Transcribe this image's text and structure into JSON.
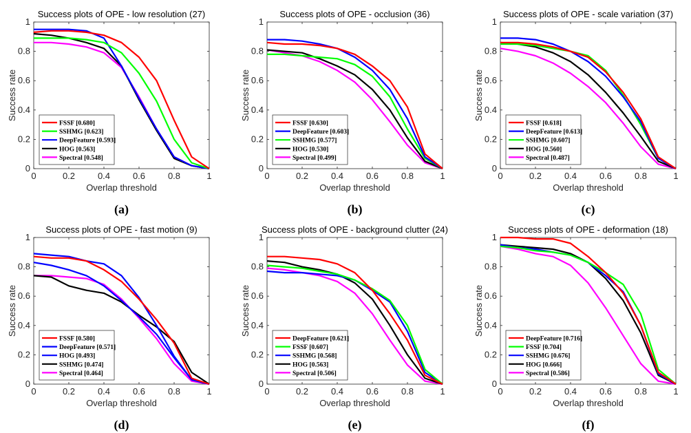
{
  "colors": {
    "FSSF": "#ff0000",
    "SSHMG": "#00ff00",
    "DeepFeature": "#0000ff",
    "HOG": "#000000",
    "Spectral": "#ff00ff"
  },
  "chart_data": [
    {
      "type": "line",
      "caption": "(a)",
      "title": "Success plots of OPE - low resolution (27)",
      "xlabel": "Overlap threshold",
      "ylabel": "Success rate",
      "xlim": [
        0,
        1
      ],
      "ylim": [
        0,
        1
      ],
      "xticks": [
        "0",
        "0.2",
        "0.4",
        "0.6",
        "0.8",
        "1"
      ],
      "yticks": [
        "0",
        "0.2",
        "0.4",
        "0.6",
        "0.8",
        "1"
      ],
      "legend_position": "bottom-left",
      "x": [
        0,
        0.1,
        0.2,
        0.3,
        0.4,
        0.5,
        0.6,
        0.7,
        0.8,
        0.9,
        1.0
      ],
      "series": [
        {
          "name": "FSSF",
          "legend": "FSSF [0.680]",
          "color_key": "FSSF",
          "values": [
            0.93,
            0.94,
            0.94,
            0.93,
            0.91,
            0.86,
            0.76,
            0.6,
            0.33,
            0.08,
            0.0
          ]
        },
        {
          "name": "SSHMG",
          "legend": "SSHMG [0.623]",
          "color_key": "SSHMG",
          "values": [
            0.89,
            0.89,
            0.89,
            0.88,
            0.86,
            0.79,
            0.65,
            0.46,
            0.2,
            0.04,
            0.0
          ]
        },
        {
          "name": "DeepFeature",
          "legend": "DeepFeature [0.593]",
          "color_key": "DeepFeature",
          "values": [
            0.95,
            0.95,
            0.95,
            0.94,
            0.89,
            0.7,
            0.48,
            0.27,
            0.08,
            0.02,
            0.0
          ]
        },
        {
          "name": "HOG",
          "legend": "HOG [0.563]",
          "color_key": "HOG",
          "values": [
            0.92,
            0.91,
            0.89,
            0.86,
            0.82,
            0.7,
            0.47,
            0.26,
            0.07,
            0.02,
            0.0
          ]
        },
        {
          "name": "Spectral",
          "legend": "Spectral [0.548]",
          "color_key": "Spectral",
          "values": [
            0.86,
            0.86,
            0.85,
            0.83,
            0.79,
            0.69,
            0.49,
            0.27,
            0.08,
            0.02,
            0.0
          ]
        }
      ]
    },
    {
      "type": "line",
      "caption": "(b)",
      "title": "Success plots of OPE - occlusion (36)",
      "xlabel": "Overlap threshold",
      "ylabel": "Success rate",
      "xlim": [
        0,
        1
      ],
      "ylim": [
        0,
        1
      ],
      "xticks": [
        "0",
        "0.2",
        "0.4",
        "0.6",
        "0.8",
        "1"
      ],
      "yticks": [
        "0",
        "0.2",
        "0.4",
        "0.6",
        "0.8",
        "1"
      ],
      "legend_position": "bottom-left",
      "x": [
        0,
        0.1,
        0.2,
        0.3,
        0.4,
        0.5,
        0.6,
        0.7,
        0.8,
        0.9,
        1.0
      ],
      "series": [
        {
          "name": "FSSF",
          "legend": "FSSF [0.630]",
          "color_key": "FSSF",
          "values": [
            0.86,
            0.85,
            0.85,
            0.84,
            0.82,
            0.78,
            0.7,
            0.6,
            0.42,
            0.1,
            0.0
          ]
        },
        {
          "name": "DeepFeature",
          "legend": "DeepFeature [0.603]",
          "color_key": "DeepFeature",
          "values": [
            0.88,
            0.88,
            0.87,
            0.85,
            0.82,
            0.76,
            0.67,
            0.54,
            0.34,
            0.08,
            0.0
          ]
        },
        {
          "name": "SSHMG",
          "legend": "SSHMG [0.577]",
          "color_key": "SSHMG",
          "values": [
            0.78,
            0.78,
            0.77,
            0.76,
            0.75,
            0.71,
            0.63,
            0.49,
            0.27,
            0.07,
            0.0
          ]
        },
        {
          "name": "HOG",
          "legend": "HOG [0.530]",
          "color_key": "HOG",
          "values": [
            0.81,
            0.8,
            0.79,
            0.75,
            0.7,
            0.64,
            0.54,
            0.4,
            0.21,
            0.05,
            0.0
          ]
        },
        {
          "name": "Spectral",
          "legend": "Spectral [0.499]",
          "color_key": "Spectral",
          "values": [
            0.81,
            0.79,
            0.77,
            0.73,
            0.67,
            0.59,
            0.47,
            0.32,
            0.16,
            0.04,
            0.0
          ]
        }
      ]
    },
    {
      "type": "line",
      "caption": "(c)",
      "title": "Success plots of OPE - scale variation (37)",
      "xlabel": "Overlap threshold",
      "ylabel": "Success rate",
      "xlim": [
        0,
        1
      ],
      "ylim": [
        0,
        1
      ],
      "xticks": [
        "0",
        "0.2",
        "0.4",
        "0.6",
        "0.8",
        "1"
      ],
      "yticks": [
        "0",
        "0.2",
        "0.4",
        "0.6",
        "0.8",
        "1"
      ],
      "legend_position": "bottom-left",
      "x": [
        0,
        0.1,
        0.2,
        0.3,
        0.4,
        0.5,
        0.6,
        0.7,
        0.8,
        0.9,
        1.0
      ],
      "series": [
        {
          "name": "FSSF",
          "legend": "FSSF [0.618]",
          "color_key": "FSSF",
          "values": [
            0.86,
            0.86,
            0.85,
            0.83,
            0.8,
            0.76,
            0.66,
            0.52,
            0.34,
            0.08,
            0.0
          ]
        },
        {
          "name": "DeepFeature",
          "legend": "DeepFeature [0.613]",
          "color_key": "DeepFeature",
          "values": [
            0.89,
            0.89,
            0.88,
            0.85,
            0.8,
            0.73,
            0.63,
            0.49,
            0.32,
            0.07,
            0.0
          ]
        },
        {
          "name": "SSHMG",
          "legend": "SSHMG [0.607]",
          "color_key": "SSHMG",
          "values": [
            0.85,
            0.85,
            0.84,
            0.82,
            0.8,
            0.77,
            0.67,
            0.5,
            0.3,
            0.07,
            0.0
          ]
        },
        {
          "name": "HOG",
          "legend": "HOG [0.560]",
          "color_key": "HOG",
          "values": [
            0.86,
            0.85,
            0.83,
            0.79,
            0.73,
            0.64,
            0.52,
            0.38,
            0.22,
            0.05,
            0.0
          ]
        },
        {
          "name": "Spectral",
          "legend": "Spectral [0.487]",
          "color_key": "Spectral",
          "values": [
            0.82,
            0.8,
            0.77,
            0.72,
            0.65,
            0.56,
            0.45,
            0.31,
            0.15,
            0.03,
            0.0
          ]
        }
      ]
    },
    {
      "type": "line",
      "caption": "(d)",
      "title": "Success plots of OPE - fast motion (9)",
      "xlabel": "Overlap threshold",
      "ylabel": "Success rate",
      "xlim": [
        0,
        1
      ],
      "ylim": [
        0,
        1
      ],
      "xticks": [
        "0",
        "0.2",
        "0.4",
        "0.6",
        "0.8",
        "1"
      ],
      "yticks": [
        "0",
        "0.2",
        "0.4",
        "0.6",
        "0.8",
        "1"
      ],
      "legend_position": "bottom-left",
      "x": [
        0,
        0.1,
        0.2,
        0.3,
        0.4,
        0.5,
        0.6,
        0.7,
        0.8,
        0.9,
        1.0
      ],
      "series": [
        {
          "name": "FSSF",
          "legend": "FSSF [0.580]",
          "color_key": "FSSF",
          "values": [
            0.87,
            0.86,
            0.86,
            0.84,
            0.78,
            0.7,
            0.58,
            0.44,
            0.28,
            0.04,
            0.0
          ]
        },
        {
          "name": "DeepFeature",
          "legend": "DeepFeature [0.571]",
          "color_key": "DeepFeature",
          "values": [
            0.89,
            0.88,
            0.87,
            0.84,
            0.82,
            0.74,
            0.59,
            0.4,
            0.19,
            0.03,
            0.0
          ]
        },
        {
          "name": "HOG",
          "legend": "HOG [0.493]",
          "color_key": "DeepFeature",
          "values": [
            0.83,
            0.81,
            0.78,
            0.74,
            0.67,
            0.57,
            0.46,
            0.34,
            0.18,
            0.03,
            0.0
          ]
        },
        {
          "name": "SSHMG",
          "legend": "SSHMG [0.474]",
          "color_key": "HOG",
          "values": [
            0.74,
            0.73,
            0.67,
            0.64,
            0.62,
            0.56,
            0.47,
            0.39,
            0.29,
            0.08,
            0.0
          ]
        },
        {
          "name": "Spectral",
          "legend": "Spectral [0.464]",
          "color_key": "Spectral",
          "values": [
            0.74,
            0.74,
            0.73,
            0.72,
            0.68,
            0.58,
            0.45,
            0.31,
            0.14,
            0.02,
            0.0
          ]
        }
      ]
    },
    {
      "type": "line",
      "caption": "(e)",
      "title": "Success plots of OPE - background clutter (24)",
      "xlabel": "Overlap threshold",
      "ylabel": "Success rate",
      "xlim": [
        0,
        1
      ],
      "ylim": [
        0,
        1
      ],
      "xticks": [
        "0",
        "0.2",
        "0.4",
        "0.6",
        "0.8",
        "1"
      ],
      "yticks": [
        "0",
        "0.2",
        "0.4",
        "0.6",
        "0.8",
        "1"
      ],
      "legend_position": "bottom-left",
      "x": [
        0,
        0.1,
        0.2,
        0.3,
        0.4,
        0.5,
        0.6,
        0.7,
        0.8,
        0.9,
        1.0
      ],
      "series": [
        {
          "name": "DeepFeature",
          "legend": "DeepFeature [0.621]",
          "color_key": "FSSF",
          "values": [
            0.87,
            0.87,
            0.86,
            0.85,
            0.82,
            0.76,
            0.64,
            0.48,
            0.3,
            0.06,
            0.0
          ]
        },
        {
          "name": "FSSF",
          "legend": "FSSF [0.607]",
          "color_key": "SSHMG",
          "values": [
            0.81,
            0.8,
            0.79,
            0.77,
            0.75,
            0.71,
            0.65,
            0.57,
            0.4,
            0.1,
            0.0
          ]
        },
        {
          "name": "SSHMG",
          "legend": "SSHMG [0.568]",
          "color_key": "DeepFeature",
          "values": [
            0.77,
            0.76,
            0.76,
            0.75,
            0.74,
            0.71,
            0.64,
            0.56,
            0.36,
            0.08,
            0.0
          ]
        },
        {
          "name": "HOG",
          "legend": "HOG [0.563]",
          "color_key": "HOG",
          "values": [
            0.84,
            0.83,
            0.8,
            0.78,
            0.75,
            0.69,
            0.58,
            0.4,
            0.2,
            0.04,
            0.0
          ]
        },
        {
          "name": "Spectral",
          "legend": "Spectral [0.506]",
          "color_key": "Spectral",
          "values": [
            0.79,
            0.78,
            0.76,
            0.74,
            0.7,
            0.62,
            0.48,
            0.3,
            0.13,
            0.02,
            0.0
          ]
        }
      ]
    },
    {
      "type": "line",
      "caption": "(f)",
      "title": "Success plots of OPE - deformation (18)",
      "xlabel": "Overlap threshold",
      "ylabel": "Success rate",
      "xlim": [
        0,
        1
      ],
      "ylim": [
        0,
        1
      ],
      "xticks": [
        "0",
        "0.2",
        "0.4",
        "0.6",
        "0.8",
        "1"
      ],
      "yticks": [
        "0",
        "0.2",
        "0.4",
        "0.6",
        "0.8",
        "1"
      ],
      "legend_position": "bottom-left",
      "x": [
        0,
        0.1,
        0.2,
        0.3,
        0.4,
        0.5,
        0.6,
        0.7,
        0.8,
        0.9,
        1.0
      ],
      "series": [
        {
          "name": "DeepFeature",
          "legend": "DeepFeature [0.716]",
          "color_key": "FSSF",
          "values": [
            1.0,
            1.0,
            0.99,
            0.99,
            0.96,
            0.87,
            0.76,
            0.62,
            0.4,
            0.08,
            0.0
          ]
        },
        {
          "name": "FSSF",
          "legend": "FSSF [0.704]",
          "color_key": "SSHMG",
          "values": [
            0.94,
            0.93,
            0.91,
            0.9,
            0.88,
            0.83,
            0.76,
            0.68,
            0.48,
            0.1,
            0.0
          ]
        },
        {
          "name": "SSHMG",
          "legend": "SSHMG [0.676]",
          "color_key": "DeepFeature",
          "values": [
            0.95,
            0.93,
            0.92,
            0.9,
            0.88,
            0.83,
            0.74,
            0.63,
            0.4,
            0.07,
            0.0
          ]
        },
        {
          "name": "HOG",
          "legend": "HOG [0.666]",
          "color_key": "HOG",
          "values": [
            0.95,
            0.94,
            0.93,
            0.92,
            0.89,
            0.83,
            0.72,
            0.57,
            0.35,
            0.06,
            0.0
          ]
        },
        {
          "name": "Spectral",
          "legend": "Spectral [0.586]",
          "color_key": "Spectral",
          "values": [
            0.94,
            0.92,
            0.89,
            0.87,
            0.81,
            0.69,
            0.52,
            0.33,
            0.14,
            0.02,
            0.0
          ]
        }
      ]
    }
  ]
}
